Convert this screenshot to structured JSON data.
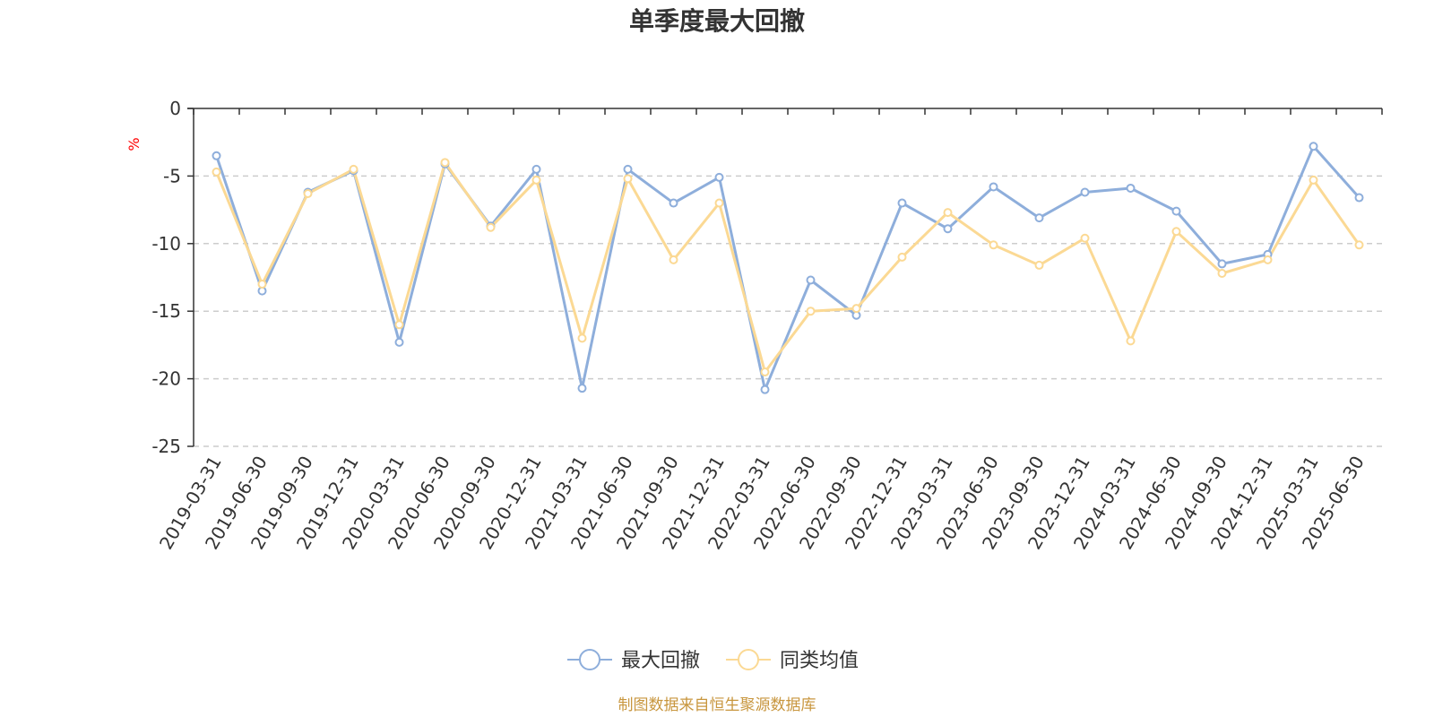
{
  "chart_data": {
    "type": "line",
    "title": "单季度最大回撤",
    "ylabel": "%",
    "ylim": [
      -25,
      0
    ],
    "yticks": [
      0,
      -5,
      -10,
      -15,
      -20,
      -25
    ],
    "grid": "horizontal-dashed",
    "legend_position": "bottom-center",
    "categories": [
      "2019-03-31",
      "2019-06-30",
      "2019-09-30",
      "2019-12-31",
      "2020-03-31",
      "2020-06-30",
      "2020-09-30",
      "2020-12-31",
      "2021-03-31",
      "2021-06-30",
      "2021-09-30",
      "2021-12-31",
      "2022-03-31",
      "2022-06-30",
      "2022-09-30",
      "2022-12-31",
      "2023-03-31",
      "2023-06-30",
      "2023-09-30",
      "2023-12-31",
      "2024-03-31",
      "2024-06-30",
      "2024-09-30",
      "2024-12-31",
      "2025-03-31",
      "2025-06-30"
    ],
    "series": [
      {
        "name": "最大回撤",
        "color": "#8eaedb",
        "values": [
          -3.5,
          -13.5,
          -6.2,
          -4.6,
          -17.3,
          -4.1,
          -8.7,
          -4.5,
          -20.7,
          -4.5,
          -7.0,
          -5.1,
          -20.8,
          -12.7,
          -15.3,
          -7.0,
          -8.9,
          -5.8,
          -8.1,
          -6.2,
          -5.9,
          -7.6,
          -11.5,
          -10.8,
          -2.8,
          -6.6
        ]
      },
      {
        "name": "同类均值",
        "color": "#fbd994",
        "values": [
          -4.7,
          -13.0,
          -6.3,
          -4.5,
          -16.0,
          -4.0,
          -8.8,
          -5.3,
          -17.0,
          -5.2,
          -11.2,
          -7.0,
          -19.5,
          -15.0,
          -14.8,
          -11.0,
          -7.7,
          -10.1,
          -11.6,
          -9.6,
          -17.2,
          -9.1,
          -12.2,
          -11.2,
          -5.3,
          -10.1
        ]
      }
    ]
  },
  "source_note": "制图数据来自恒生聚源数据库"
}
